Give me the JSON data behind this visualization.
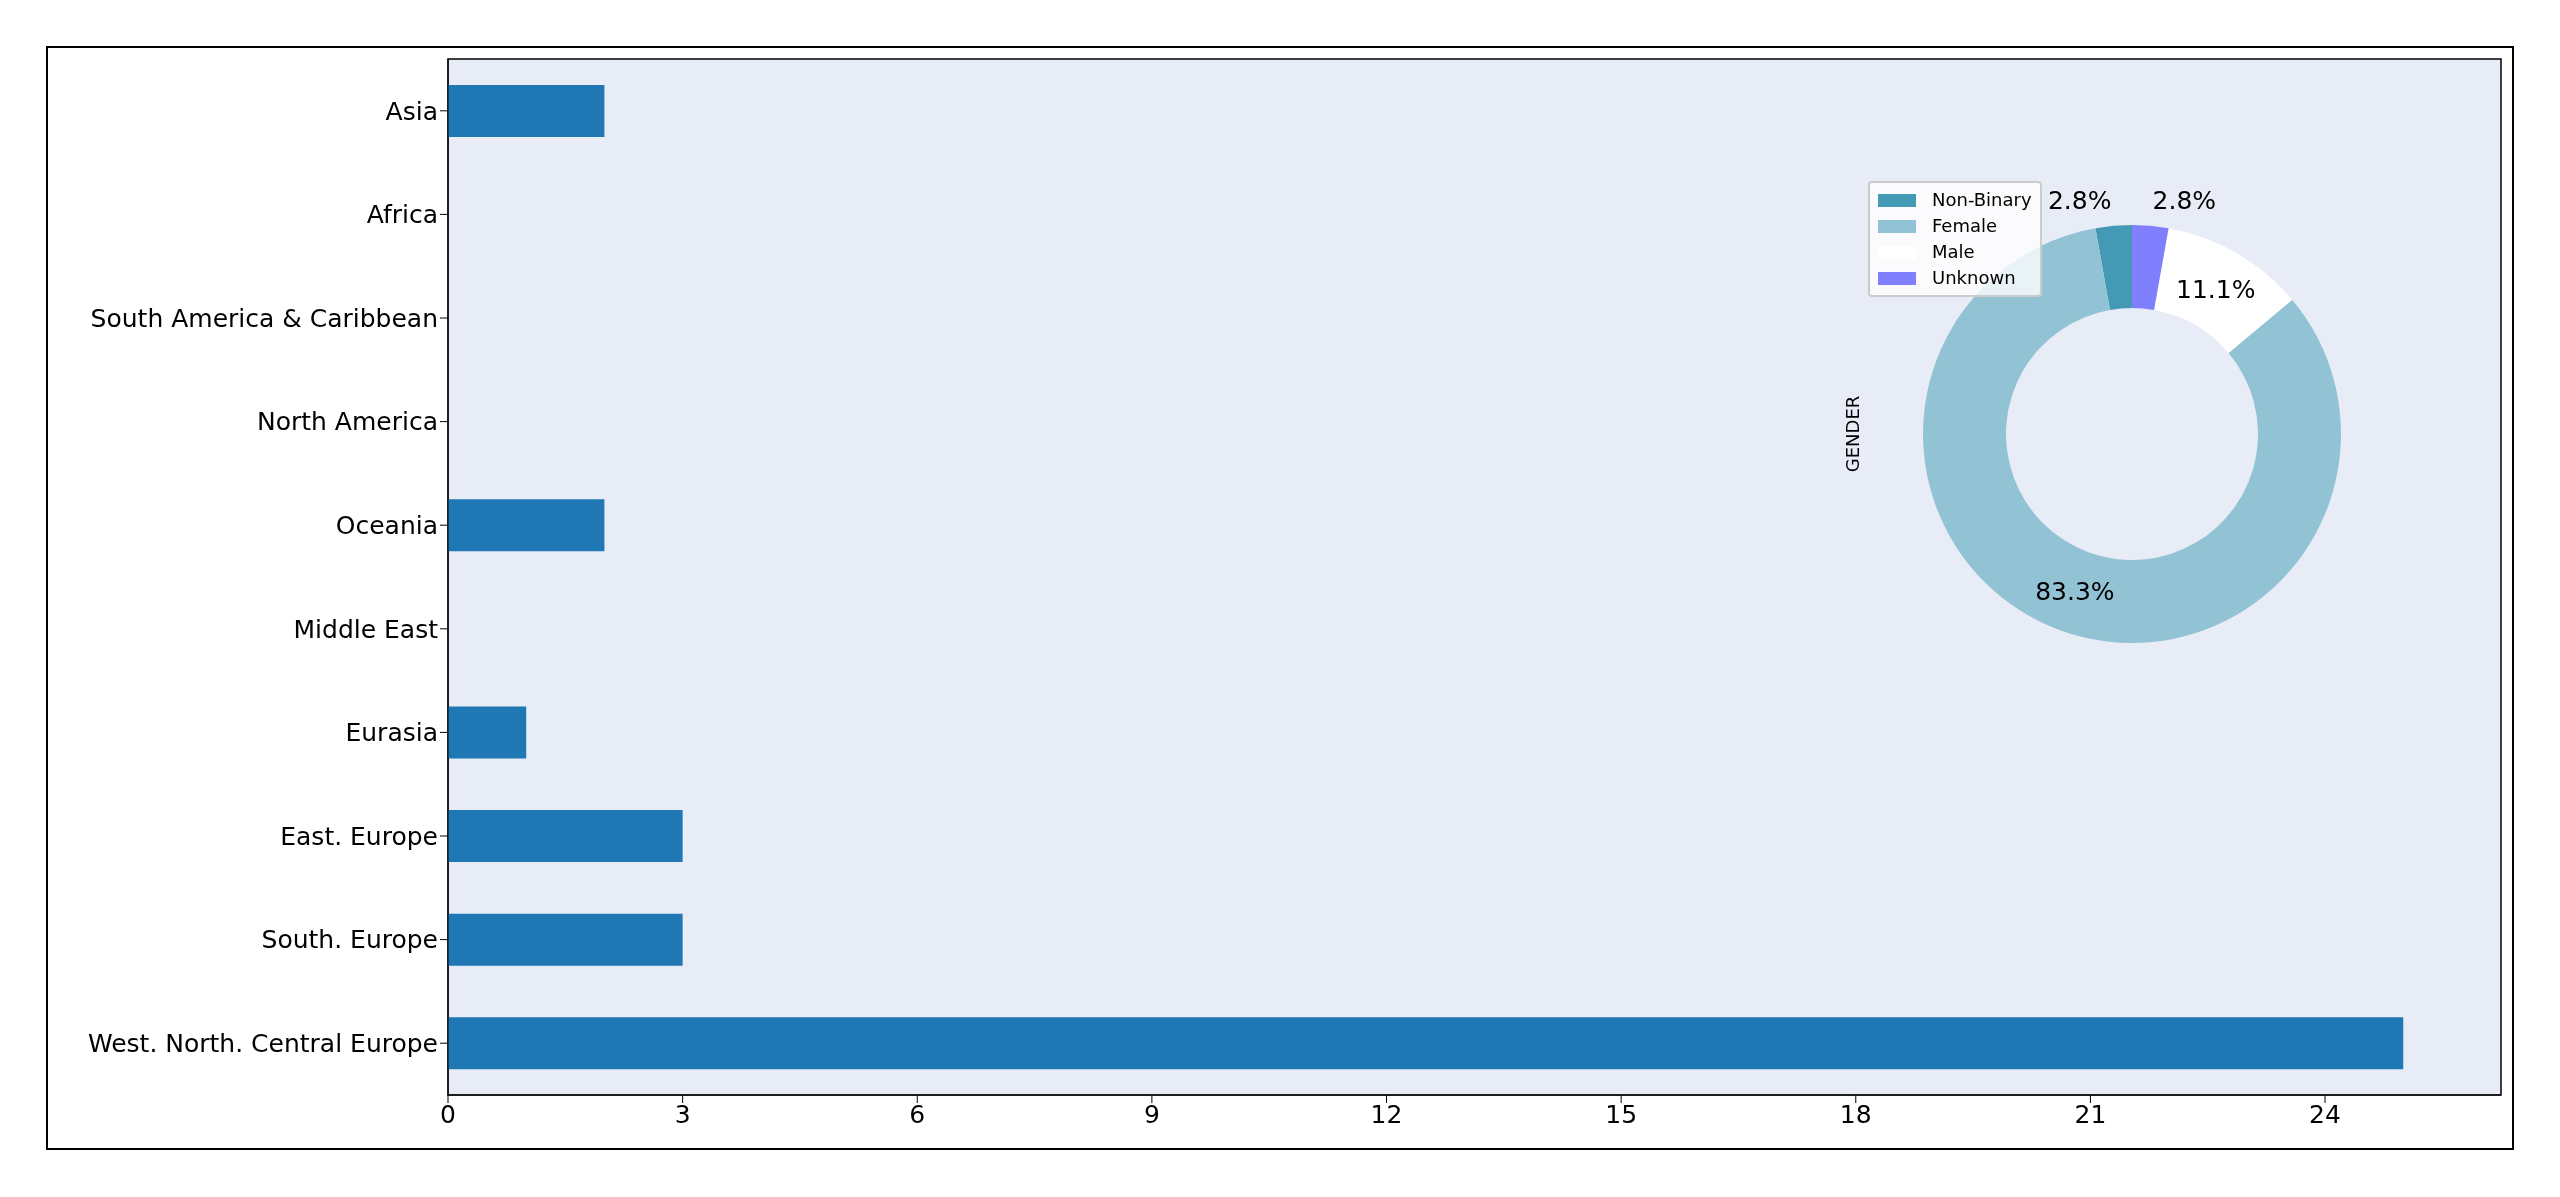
{
  "chart_data": [
    {
      "type": "bar",
      "orientation": "horizontal",
      "categories": [
        "Asia",
        "Africa",
        "South America & Caribbean",
        "North America",
        "Oceania",
        "Middle East",
        "Eurasia",
        "East. Europe",
        "South. Europe",
        "West. North. Central Europe"
      ],
      "values": [
        2,
        0,
        0,
        0,
        2,
        0,
        1,
        3,
        3,
        25
      ],
      "color": "#1f77b4",
      "xlim": [
        0,
        26.25
      ],
      "xticks": [
        0,
        3,
        6,
        9,
        12,
        15,
        18,
        21,
        24
      ],
      "grid": false
    },
    {
      "type": "donut",
      "ylabel": "GENDER",
      "categories": [
        "Non-Binary",
        "Female",
        "Male",
        "Unknown"
      ],
      "values": [
        2.8,
        83.3,
        11.1,
        2.8
      ],
      "colors": [
        "#4499b4",
        "#92c3d4",
        "#ffffff",
        "#8080ff"
      ],
      "value_labels": [
        "2.8%",
        "83.3%",
        "11.1%",
        "2.8%"
      ],
      "legend": "top left"
    }
  ]
}
